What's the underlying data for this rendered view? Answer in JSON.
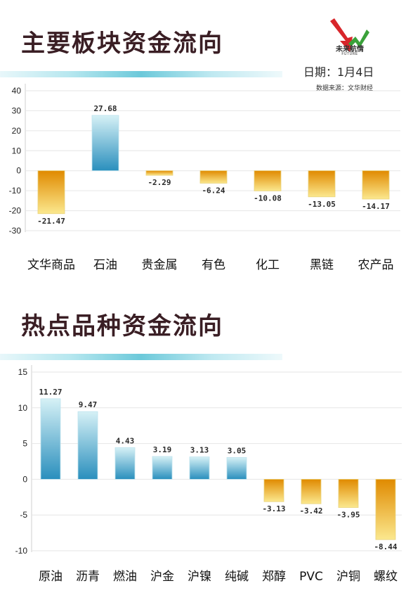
{
  "header": {
    "title": "主要板块资金流向",
    "date_label": "日期：",
    "date_value": "1月4日",
    "source": "数据来源：文华财经",
    "logo_name": "未来航情",
    "logo_sub": "FUTURE"
  },
  "section2": {
    "title": "热点品种资金流向"
  },
  "colors": {
    "title": "#3a1e24",
    "positive_top": "#d6f1f6",
    "positive_bottom": "#2a8fbd",
    "negative_top": "#e08a00",
    "negative_bottom": "#fbe88e",
    "logo_red": "#d8262b",
    "logo_green": "#3aa13a"
  },
  "chart_data": [
    {
      "type": "bar",
      "categories": [
        "文华商品",
        "石油",
        "贵金属",
        "有色",
        "化工",
        "黑链",
        "农产品"
      ],
      "values": [
        -21.47,
        27.68,
        -2.29,
        -6.24,
        -10.08,
        -13.05,
        -14.17
      ],
      "value_labels": [
        "-21.47",
        "27.68",
        "-2.29",
        "-6.24",
        "-10.08",
        "-13.05",
        "-14.17"
      ],
      "ylim": [
        -30,
        40
      ],
      "yticks": [
        40,
        30,
        20,
        10,
        0,
        -10,
        -20,
        -30
      ],
      "ytick_labels": [
        "40",
        "30",
        "20",
        "10",
        "0",
        "-10",
        "-20",
        "-30"
      ],
      "grid": true,
      "legend": "none"
    },
    {
      "type": "bar",
      "categories": [
        "原油",
        "沥青",
        "燃油",
        "沪金",
        "沪镍",
        "纯碱",
        "郑醇",
        "PVC",
        "沪铜",
        "螺纹"
      ],
      "values": [
        11.27,
        9.47,
        4.43,
        3.19,
        3.13,
        3.05,
        -3.13,
        -3.42,
        -3.95,
        -8.44
      ],
      "value_labels": [
        "11.27",
        "9.47",
        "4.43",
        "3.19",
        "3.13",
        "3.05",
        "-3.13",
        "-3.42",
        "-3.95",
        "-8.44"
      ],
      "ylim": [
        -10,
        15
      ],
      "yticks": [
        15,
        10,
        5,
        0,
        -5,
        -10
      ],
      "ytick_labels": [
        "15",
        "10",
        "5",
        "0",
        "-5",
        "-10"
      ],
      "grid": true,
      "legend": "none"
    }
  ]
}
